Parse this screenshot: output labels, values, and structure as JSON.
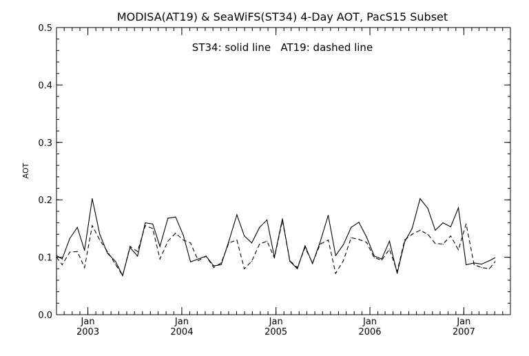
{
  "chart_data": {
    "type": "line",
    "title": "MODISA(AT19) & SeaWiFS(ST34) 4-Day AOT, PacS15 Subset",
    "annotation": "ST34: solid line   AT19: dashed line",
    "ylabel": "AOT",
    "xlabel": "",
    "ylim": [
      0.0,
      0.5
    ],
    "xlim": [
      "2002-09-01",
      "2007-07-01"
    ],
    "yticks": [
      "0.0",
      "0.1",
      "0.2",
      "0.3",
      "0.4",
      "0.5"
    ],
    "xtick_months": [
      "Jan",
      "Jan",
      "Jan",
      "Jan",
      "Jan"
    ],
    "xtick_years": [
      "2003",
      "2004",
      "2005",
      "2006",
      "2007"
    ],
    "grid": false,
    "series": [
      {
        "name": "ST34",
        "style": "solid",
        "color": "#000000",
        "points": [
          [
            "2002-09-01",
            0.103
          ],
          [
            "2002-09-23",
            0.097
          ],
          [
            "2002-10-23",
            0.133
          ],
          [
            "2002-11-21",
            0.152
          ],
          [
            "2002-12-19",
            0.112
          ],
          [
            "2003-01-18",
            0.202
          ],
          [
            "2003-02-16",
            0.14
          ],
          [
            "2003-03-18",
            0.107
          ],
          [
            "2003-04-18",
            0.093
          ],
          [
            "2003-05-16",
            0.068
          ],
          [
            "2003-06-14",
            0.117
          ],
          [
            "2003-07-13",
            0.102
          ],
          [
            "2003-08-12",
            0.16
          ],
          [
            "2003-09-10",
            0.158
          ],
          [
            "2003-10-08",
            0.119
          ],
          [
            "2003-11-08",
            0.168
          ],
          [
            "2003-12-08",
            0.17
          ],
          [
            "2004-01-07",
            0.138
          ],
          [
            "2004-02-04",
            0.092
          ],
          [
            "2004-03-05",
            0.097
          ],
          [
            "2004-04-04",
            0.102
          ],
          [
            "2004-05-04",
            0.085
          ],
          [
            "2004-06-02",
            0.087
          ],
          [
            "2004-07-02",
            0.128
          ],
          [
            "2004-08-02",
            0.174
          ],
          [
            "2004-08-31",
            0.137
          ],
          [
            "2004-09-29",
            0.125
          ],
          [
            "2004-10-29",
            0.152
          ],
          [
            "2004-11-27",
            0.165
          ],
          [
            "2004-12-26",
            0.1
          ],
          [
            "2005-01-26",
            0.167
          ],
          [
            "2005-02-24",
            0.093
          ],
          [
            "2005-03-25",
            0.08
          ],
          [
            "2005-04-24",
            0.12
          ],
          [
            "2005-05-23",
            0.089
          ],
          [
            "2005-06-22",
            0.127
          ],
          [
            "2005-07-23",
            0.173
          ],
          [
            "2005-08-21",
            0.103
          ],
          [
            "2005-09-20",
            0.122
          ],
          [
            "2005-10-20",
            0.152
          ],
          [
            "2005-11-19",
            0.161
          ],
          [
            "2005-12-19",
            0.135
          ],
          [
            "2006-01-18",
            0.102
          ],
          [
            "2006-02-16",
            0.097
          ],
          [
            "2006-03-18",
            0.128
          ],
          [
            "2006-04-17",
            0.072
          ],
          [
            "2006-05-16",
            0.127
          ],
          [
            "2006-06-14",
            0.15
          ],
          [
            "2006-07-15",
            0.202
          ],
          [
            "2006-08-14",
            0.185
          ],
          [
            "2006-09-12",
            0.147
          ],
          [
            "2006-10-12",
            0.16
          ],
          [
            "2006-11-11",
            0.153
          ],
          [
            "2006-12-11",
            0.186
          ],
          [
            "2007-01-10",
            0.087
          ],
          [
            "2007-02-10",
            0.09
          ],
          [
            "2007-03-11",
            0.088
          ],
          [
            "2007-04-10",
            0.094
          ],
          [
            "2007-05-02",
            0.099
          ]
        ]
      },
      {
        "name": "AT19",
        "style": "dashed",
        "color": "#000000",
        "points": [
          [
            "2002-09-01",
            0.1
          ],
          [
            "2002-09-23",
            0.087
          ],
          [
            "2002-10-23",
            0.109
          ],
          [
            "2002-11-21",
            0.11
          ],
          [
            "2002-12-19",
            0.082
          ],
          [
            "2003-01-18",
            0.155
          ],
          [
            "2003-02-16",
            0.13
          ],
          [
            "2003-03-18",
            0.11
          ],
          [
            "2003-04-18",
            0.088
          ],
          [
            "2003-05-16",
            0.068
          ],
          [
            "2003-06-14",
            0.119
          ],
          [
            "2003-07-13",
            0.11
          ],
          [
            "2003-08-12",
            0.155
          ],
          [
            "2003-09-10",
            0.15
          ],
          [
            "2003-10-08",
            0.097
          ],
          [
            "2003-11-08",
            0.128
          ],
          [
            "2003-12-08",
            0.142
          ],
          [
            "2004-01-07",
            0.13
          ],
          [
            "2004-02-04",
            0.125
          ],
          [
            "2004-03-05",
            0.094
          ],
          [
            "2004-04-04",
            0.102
          ],
          [
            "2004-05-04",
            0.082
          ],
          [
            "2004-06-02",
            0.09
          ],
          [
            "2004-07-02",
            0.125
          ],
          [
            "2004-08-02",
            0.13
          ],
          [
            "2004-08-31",
            0.08
          ],
          [
            "2004-09-29",
            0.093
          ],
          [
            "2004-10-29",
            0.123
          ],
          [
            "2004-11-27",
            0.128
          ],
          [
            "2004-12-26",
            0.099
          ],
          [
            "2005-01-26",
            0.164
          ],
          [
            "2005-02-24",
            0.094
          ],
          [
            "2005-03-25",
            0.082
          ],
          [
            "2005-04-24",
            0.117
          ],
          [
            "2005-05-23",
            0.09
          ],
          [
            "2005-06-22",
            0.123
          ],
          [
            "2005-07-23",
            0.13
          ],
          [
            "2005-08-21",
            0.072
          ],
          [
            "2005-09-20",
            0.094
          ],
          [
            "2005-10-20",
            0.134
          ],
          [
            "2005-11-19",
            0.131
          ],
          [
            "2005-12-19",
            0.126
          ],
          [
            "2006-01-18",
            0.099
          ],
          [
            "2006-02-16",
            0.095
          ],
          [
            "2006-03-18",
            0.114
          ],
          [
            "2006-04-17",
            0.075
          ],
          [
            "2006-05-16",
            0.13
          ],
          [
            "2006-06-14",
            0.14
          ],
          [
            "2006-07-15",
            0.147
          ],
          [
            "2006-08-14",
            0.14
          ],
          [
            "2006-09-12",
            0.124
          ],
          [
            "2006-10-12",
            0.123
          ],
          [
            "2006-11-11",
            0.137
          ],
          [
            "2006-12-11",
            0.113
          ],
          [
            "2007-01-10",
            0.158
          ],
          [
            "2007-02-10",
            0.087
          ],
          [
            "2007-03-11",
            0.082
          ],
          [
            "2007-04-10",
            0.08
          ],
          [
            "2007-05-02",
            0.092
          ]
        ]
      }
    ]
  }
}
